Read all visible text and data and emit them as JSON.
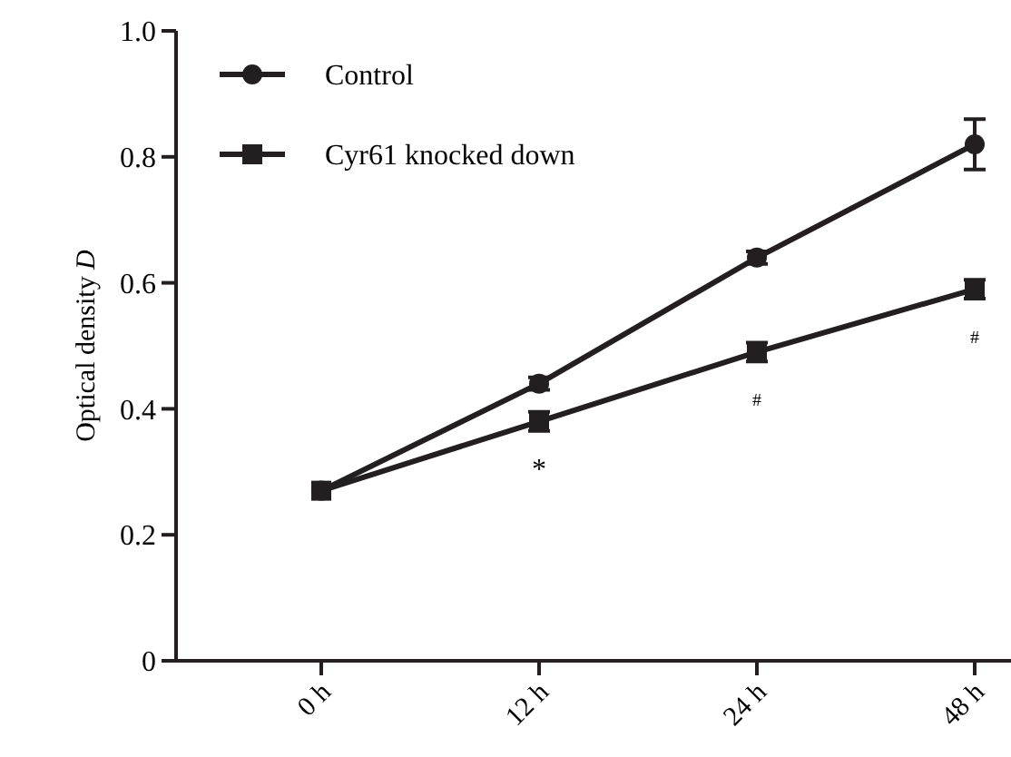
{
  "chart_data": {
    "type": "line",
    "ylabel": "Optical density D",
    "categories": [
      "0 h",
      "12 h",
      "24 h",
      "48 h"
    ],
    "ylim": [
      0,
      1
    ],
    "yticks": [
      0,
      0.2,
      0.4,
      0.6,
      0.8,
      {
        "value": 1,
        "label": "1.0"
      }
    ],
    "grid": false,
    "legend": "top left",
    "line_style": "solid",
    "series": [
      {
        "name": "Control",
        "color": "#231f20",
        "marker": "circle",
        "values": [
          0.27,
          0.44,
          0.64,
          0.82
        ],
        "errors": [
          null,
          0.01,
          0.01,
          0.04
        ]
      },
      {
        "name": "Cyr61 knocked down",
        "color": "#231f20",
        "marker": "square",
        "values": [
          0.27,
          0.38,
          0.49,
          0.59
        ],
        "errors": [
          null,
          0.015,
          0.015,
          0.015
        ]
      }
    ],
    "annotations": [
      "*",
      "#",
      "#"
    ]
  }
}
